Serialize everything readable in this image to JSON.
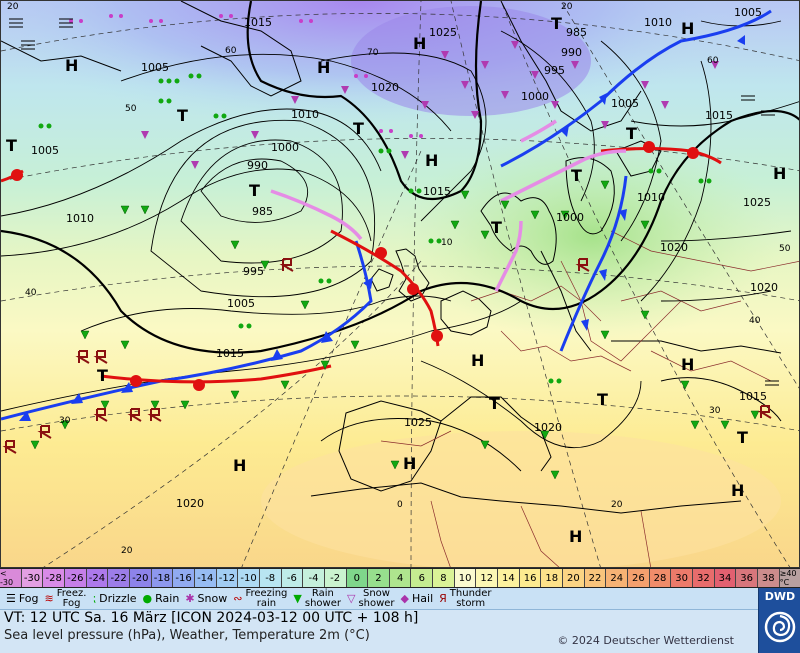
{
  "map": {
    "pressure_labels": [
      "1015",
      "1025",
      "1010",
      "1005",
      "1005",
      "990",
      "985",
      "995",
      "1000",
      "1010",
      "1005",
      "1010",
      "1000",
      "1005",
      "1020",
      "1015",
      "990",
      "985",
      "995",
      "1000",
      "1010",
      "1005",
      "1015",
      "1020",
      "1015",
      "1020",
      "1020",
      "1025",
      "1015",
      "1020",
      "1025"
    ],
    "highs": [
      "H",
      "H",
      "H",
      "H",
      "H",
      "H",
      "H",
      "H",
      "H",
      "H",
      "H",
      "H"
    ],
    "lows": [
      "T",
      "T",
      "T",
      "T",
      "T",
      "T",
      "T",
      "T",
      "T",
      "T",
      "T",
      "T"
    ],
    "grid_labels": [
      "60",
      "70",
      "50",
      "40",
      "30",
      "20",
      "0",
      "10",
      "20",
      "30",
      "40",
      "50",
      "60",
      "20",
      "20"
    ]
  },
  "colorbar": {
    "cells": [
      "< -30",
      "-30",
      "-28",
      "-26",
      "-24",
      "-22",
      "-20",
      "-18",
      "-16",
      "-14",
      "-12",
      "-10",
      "-8",
      "-6",
      "-4",
      "-2",
      "0",
      "2",
      "4",
      "6",
      "8",
      "10",
      "12",
      "14",
      "16",
      "18",
      "20",
      "22",
      "24",
      "26",
      "28",
      "30",
      "32",
      "34",
      "36",
      "38",
      "≥40 °C"
    ],
    "colors": [
      "#d98ad9",
      "#e39fe3",
      "#d98be8",
      "#c57fe8",
      "#ad79eb",
      "#9c7de8",
      "#8d83ea",
      "#8d98ee",
      "#91abf1",
      "#97bcf2",
      "#a2cdf3",
      "#aedaf3",
      "#b8e5f1",
      "#bfece8",
      "#c5f0dc",
      "#caf3cf",
      "#7fd68b",
      "#97df8d",
      "#aee58e",
      "#c5ec91",
      "#daf397",
      "#fafad0",
      "#fbf7b4",
      "#fcf29e",
      "#fdeb90",
      "#fde28a",
      "#fbd484",
      "#f9c47c",
      "#f6b274",
      "#f4a06e",
      "#f08c6a",
      "#ec7a6a",
      "#e86c6c",
      "#e26070",
      "#d8767c",
      "#cc8c8c",
      "#b8a0a0"
    ]
  },
  "legend": {
    "items": [
      {
        "icon": "fog-icon",
        "label": "Fog"
      },
      {
        "icon": "freezing-fog-icon",
        "label": "Freez.\nFog"
      },
      {
        "icon": "drizzle-icon",
        "label": "Drizzle"
      },
      {
        "icon": "rain-icon",
        "label": "Rain"
      },
      {
        "icon": "snow-icon",
        "label": "Snow"
      },
      {
        "icon": "freezing-rain-icon",
        "label": "Freezing\nrain"
      },
      {
        "icon": "rain-shower-icon",
        "label": "Rain\nshower"
      },
      {
        "icon": "snow-shower-icon",
        "label": "Snow\nshower"
      },
      {
        "icon": "hail-icon",
        "label": "Hail"
      },
      {
        "icon": "thunderstorm-icon",
        "label": "Thunder\nstorm"
      }
    ]
  },
  "footer": {
    "vt_line": "VT: 12 UTC Sa.  16 März [ICON 2024-03-12  00 UTC + 108 h]",
    "subtitle": "Sea level pressure (hPa), Weather, Temperature 2m (°C)",
    "copyright": "© 2024 Deutscher Wetterdienst"
  },
  "logo": {
    "text": "DWD"
  }
}
